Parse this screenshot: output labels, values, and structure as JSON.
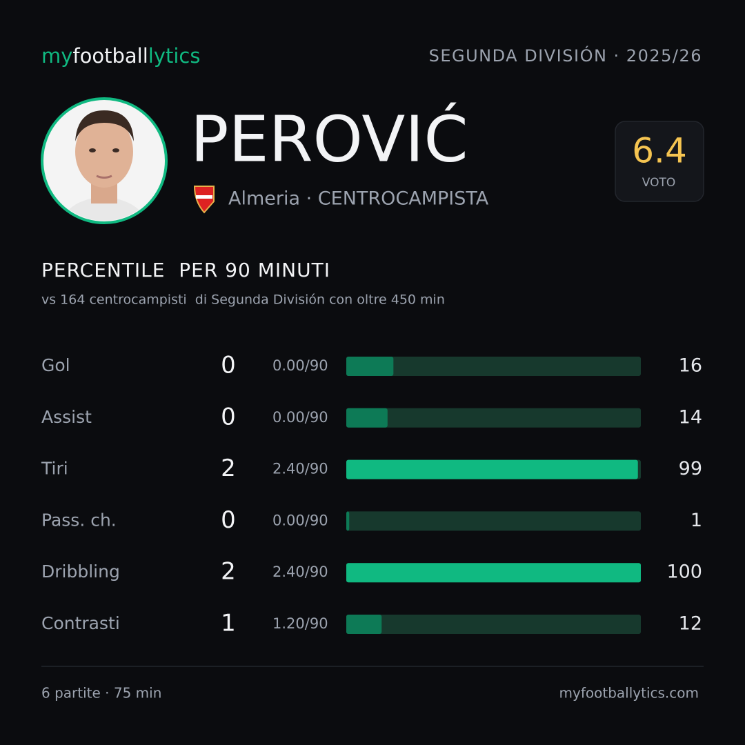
{
  "header": {
    "logo": [
      "my",
      "football",
      "lytics"
    ],
    "league": "SEGUNDA DIVISIÓN · 2025/26"
  },
  "player": {
    "name": "PEROVIĆ",
    "info": "Almeria · CENTROCAMPISTA",
    "rating": "6.4",
    "rating_label": "VOTO"
  },
  "section": {
    "title": "PERCENTILE  PER 90 MINUTI",
    "subtitle": "vs 164 centrocampisti  di Segunda División con oltre 450 min"
  },
  "stats": {
    "xlim": [
      0,
      100
    ],
    "track_color": "#17392d",
    "rows": [
      {
        "label": "Gol",
        "value": 0,
        "per90": "0.00/90",
        "percentile": 16,
        "color": "#0d7a56"
      },
      {
        "label": "Assist",
        "value": 0,
        "per90": "0.00/90",
        "percentile": 14,
        "color": "#0d7a56"
      },
      {
        "label": "Tiri",
        "value": 2,
        "per90": "2.40/90",
        "percentile": 99,
        "color": "#10b981"
      },
      {
        "label": "Pass. ch.",
        "value": 0,
        "per90": "0.00/90",
        "percentile": 1,
        "color": "#0d7a56"
      },
      {
        "label": "Dribbling",
        "value": 2,
        "per90": "2.40/90",
        "percentile": 100,
        "color": "#10b981"
      },
      {
        "label": "Contrasti",
        "value": 1,
        "per90": "1.20/90",
        "percentile": 12,
        "color": "#0d7a56"
      }
    ]
  },
  "footer": {
    "left": "6 partite · 75 min",
    "right": "myfootballytics.com"
  }
}
